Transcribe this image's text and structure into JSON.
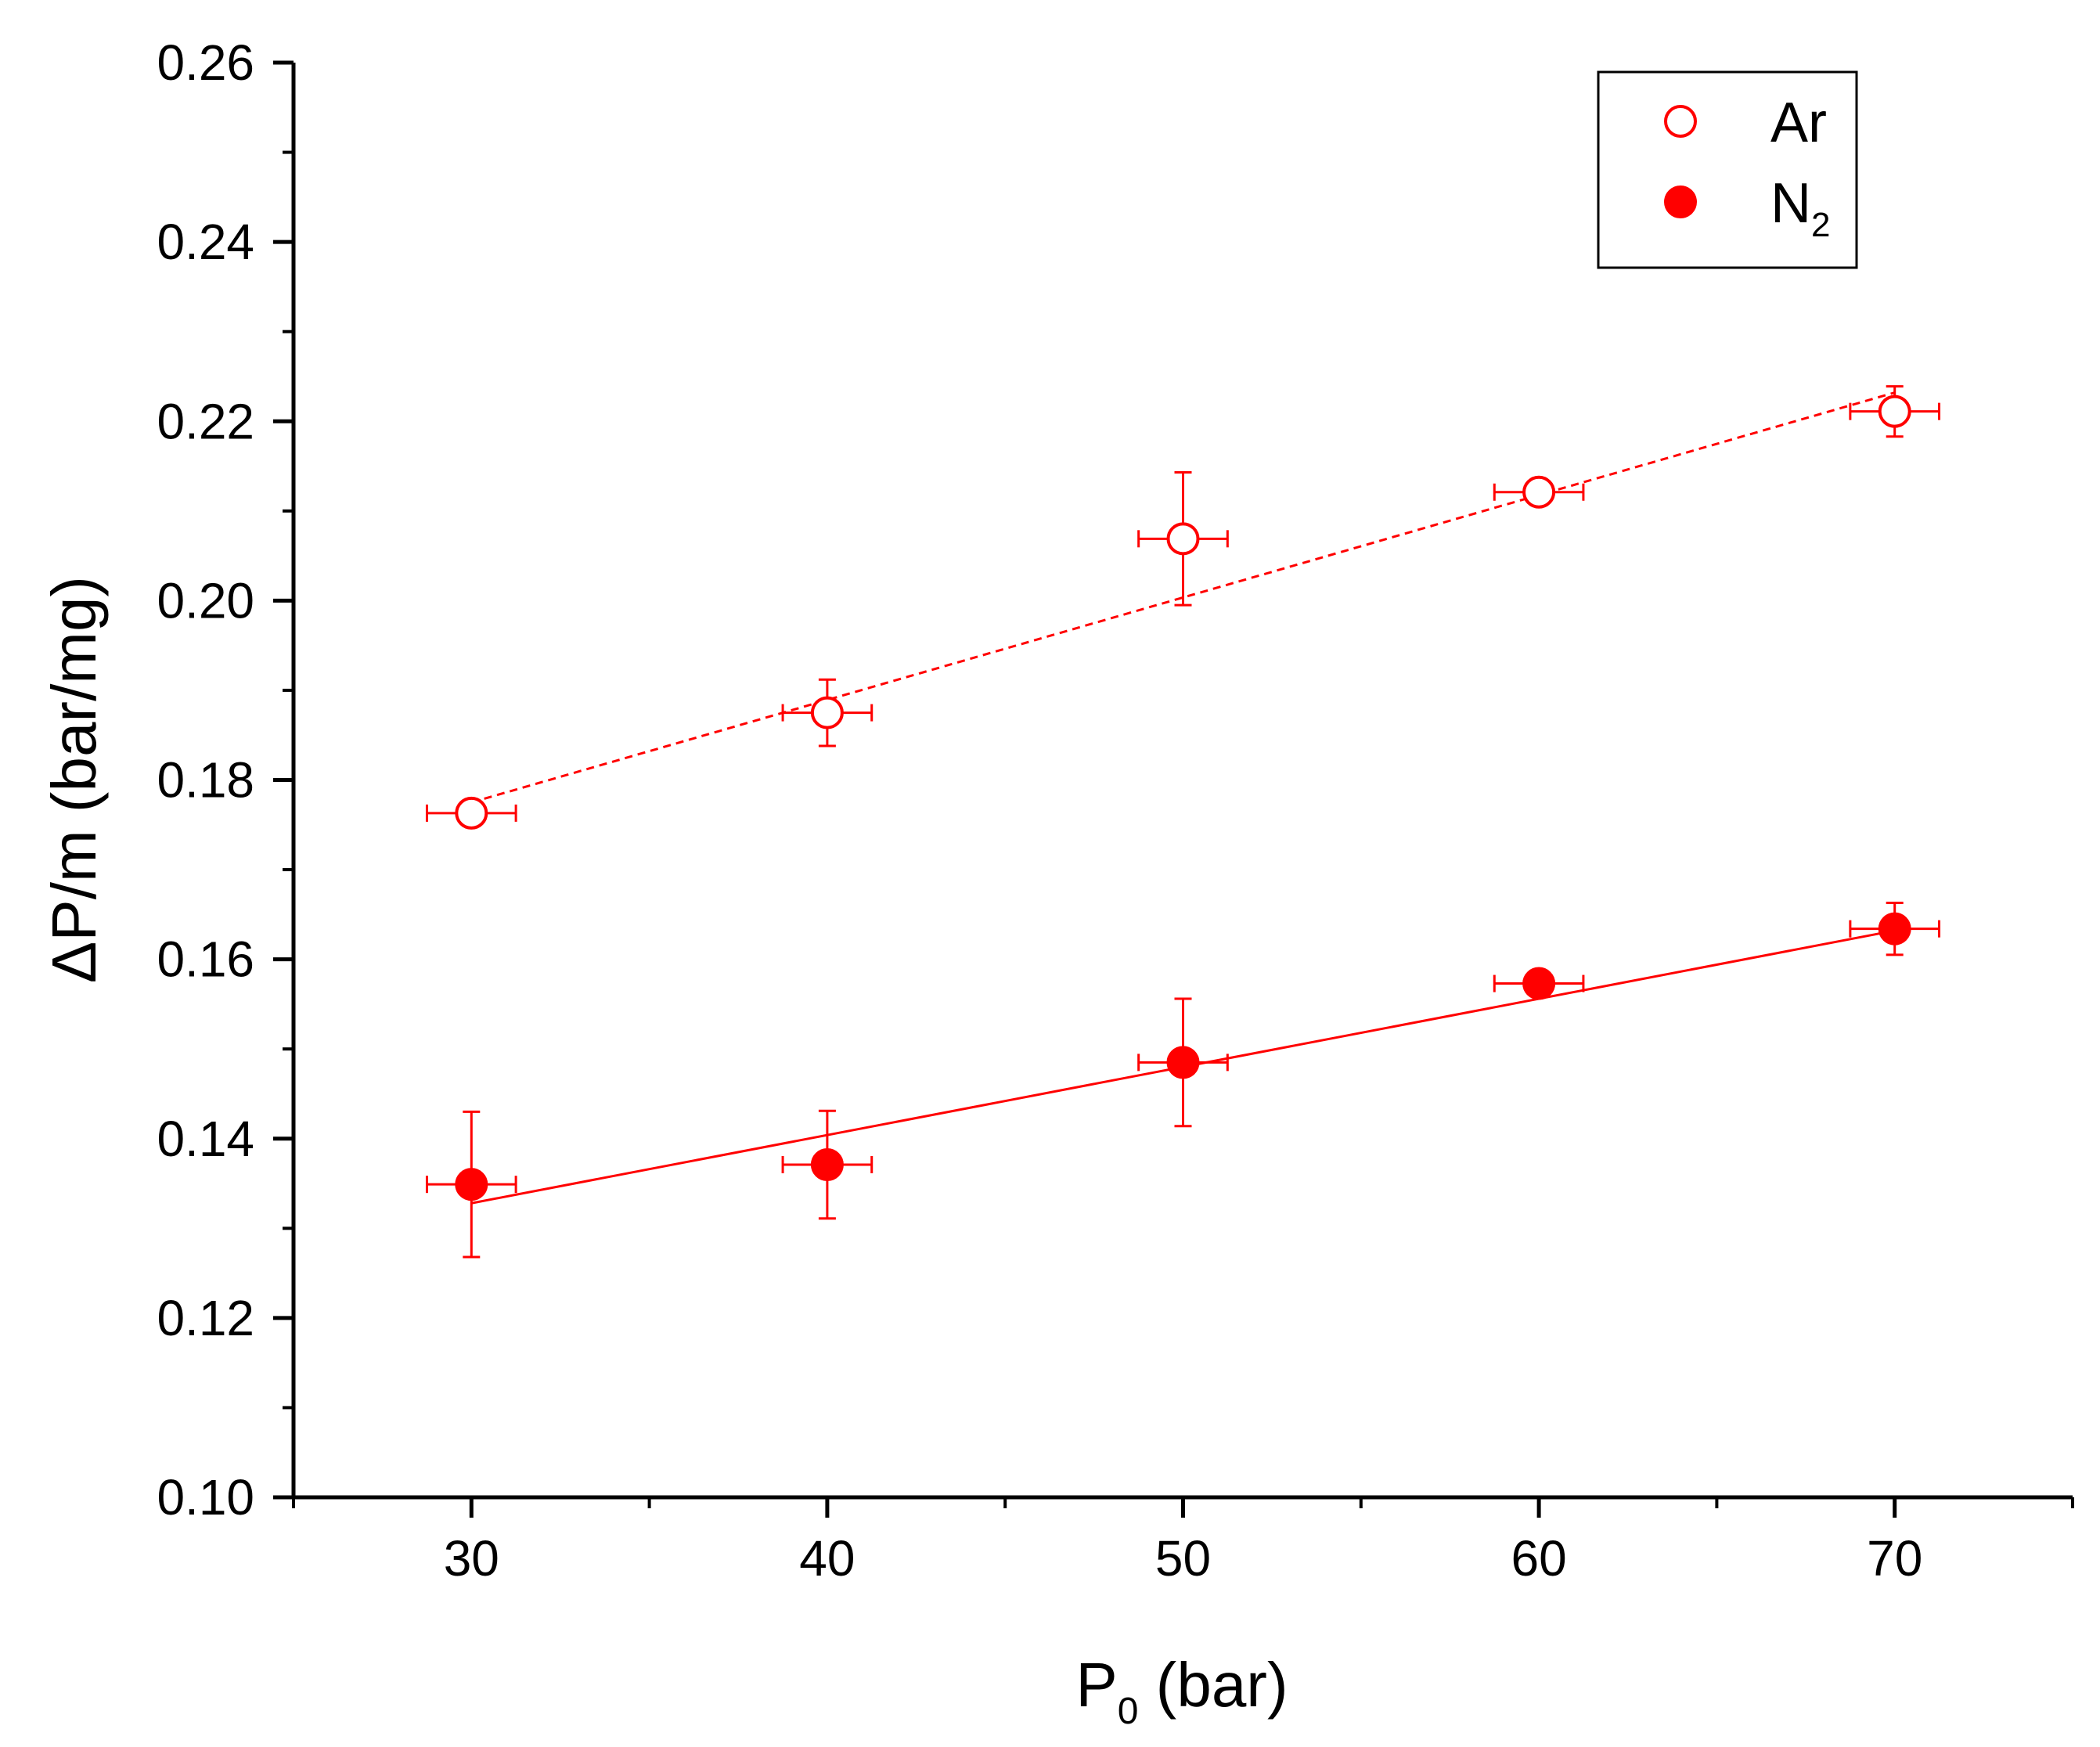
{
  "chart_data": {
    "type": "scatter",
    "title": "",
    "xlabel": {
      "main": "P",
      "sub": "0",
      "rest": " (bar)"
    },
    "ylabel": "ΔP/m (bar/mg)",
    "xlim": [
      25,
      75
    ],
    "ylim": [
      0.1,
      0.26
    ],
    "x_major_ticks": [
      30,
      40,
      50,
      60,
      70
    ],
    "x_tick_labels": [
      "30",
      "40",
      "50",
      "60",
      "70"
    ],
    "x_minor_ticks": [
      25,
      35,
      45,
      55,
      65,
      75
    ],
    "y_major_ticks": [
      0.1,
      0.12,
      0.14,
      0.16,
      0.18,
      0.2,
      0.22,
      0.24,
      0.26
    ],
    "y_tick_labels": [
      "0.10",
      "0.12",
      "0.14",
      "0.16",
      "0.18",
      "0.20",
      "0.22",
      "0.24",
      "0.26"
    ],
    "y_minor_ticks": [
      0.11,
      0.13,
      0.15,
      0.17,
      0.19,
      0.21,
      0.23,
      0.25
    ],
    "grid": false,
    "legend_position": "top-right",
    "color": "#ff0000",
    "series": [
      {
        "name": "Ar",
        "legend": {
          "main": "Ar",
          "sub": ""
        },
        "marker": "open-circle",
        "x": [
          30,
          40,
          50,
          60,
          70
        ],
        "y": [
          0.1763,
          0.1875,
          0.2069,
          0.2121,
          0.2211
        ],
        "y_err": [
          0.0012,
          0.0037,
          0.0074,
          0.0012,
          0.0028
        ],
        "x_err": [
          1.25,
          1.25,
          1.25,
          1.25,
          1.25
        ],
        "fit": {
          "style": "dashed",
          "x": [
            30,
            70
          ],
          "y": [
            0.1775,
            0.2232
          ]
        }
      },
      {
        "name": "N2",
        "legend": {
          "main": "N",
          "sub": "2"
        },
        "marker": "filled-circle",
        "x": [
          30,
          40,
          50,
          60,
          70
        ],
        "y": [
          0.1349,
          0.1371,
          0.1485,
          0.1573,
          0.1634
        ],
        "y_err": [
          0.0081,
          0.006,
          0.0071,
          0.0012,
          0.0029
        ],
        "x_err": [
          1.25,
          1.25,
          1.25,
          1.25,
          1.25
        ],
        "fit": {
          "style": "solid",
          "x": [
            30,
            70
          ],
          "y": [
            0.1328,
            0.1632
          ]
        }
      }
    ]
  }
}
